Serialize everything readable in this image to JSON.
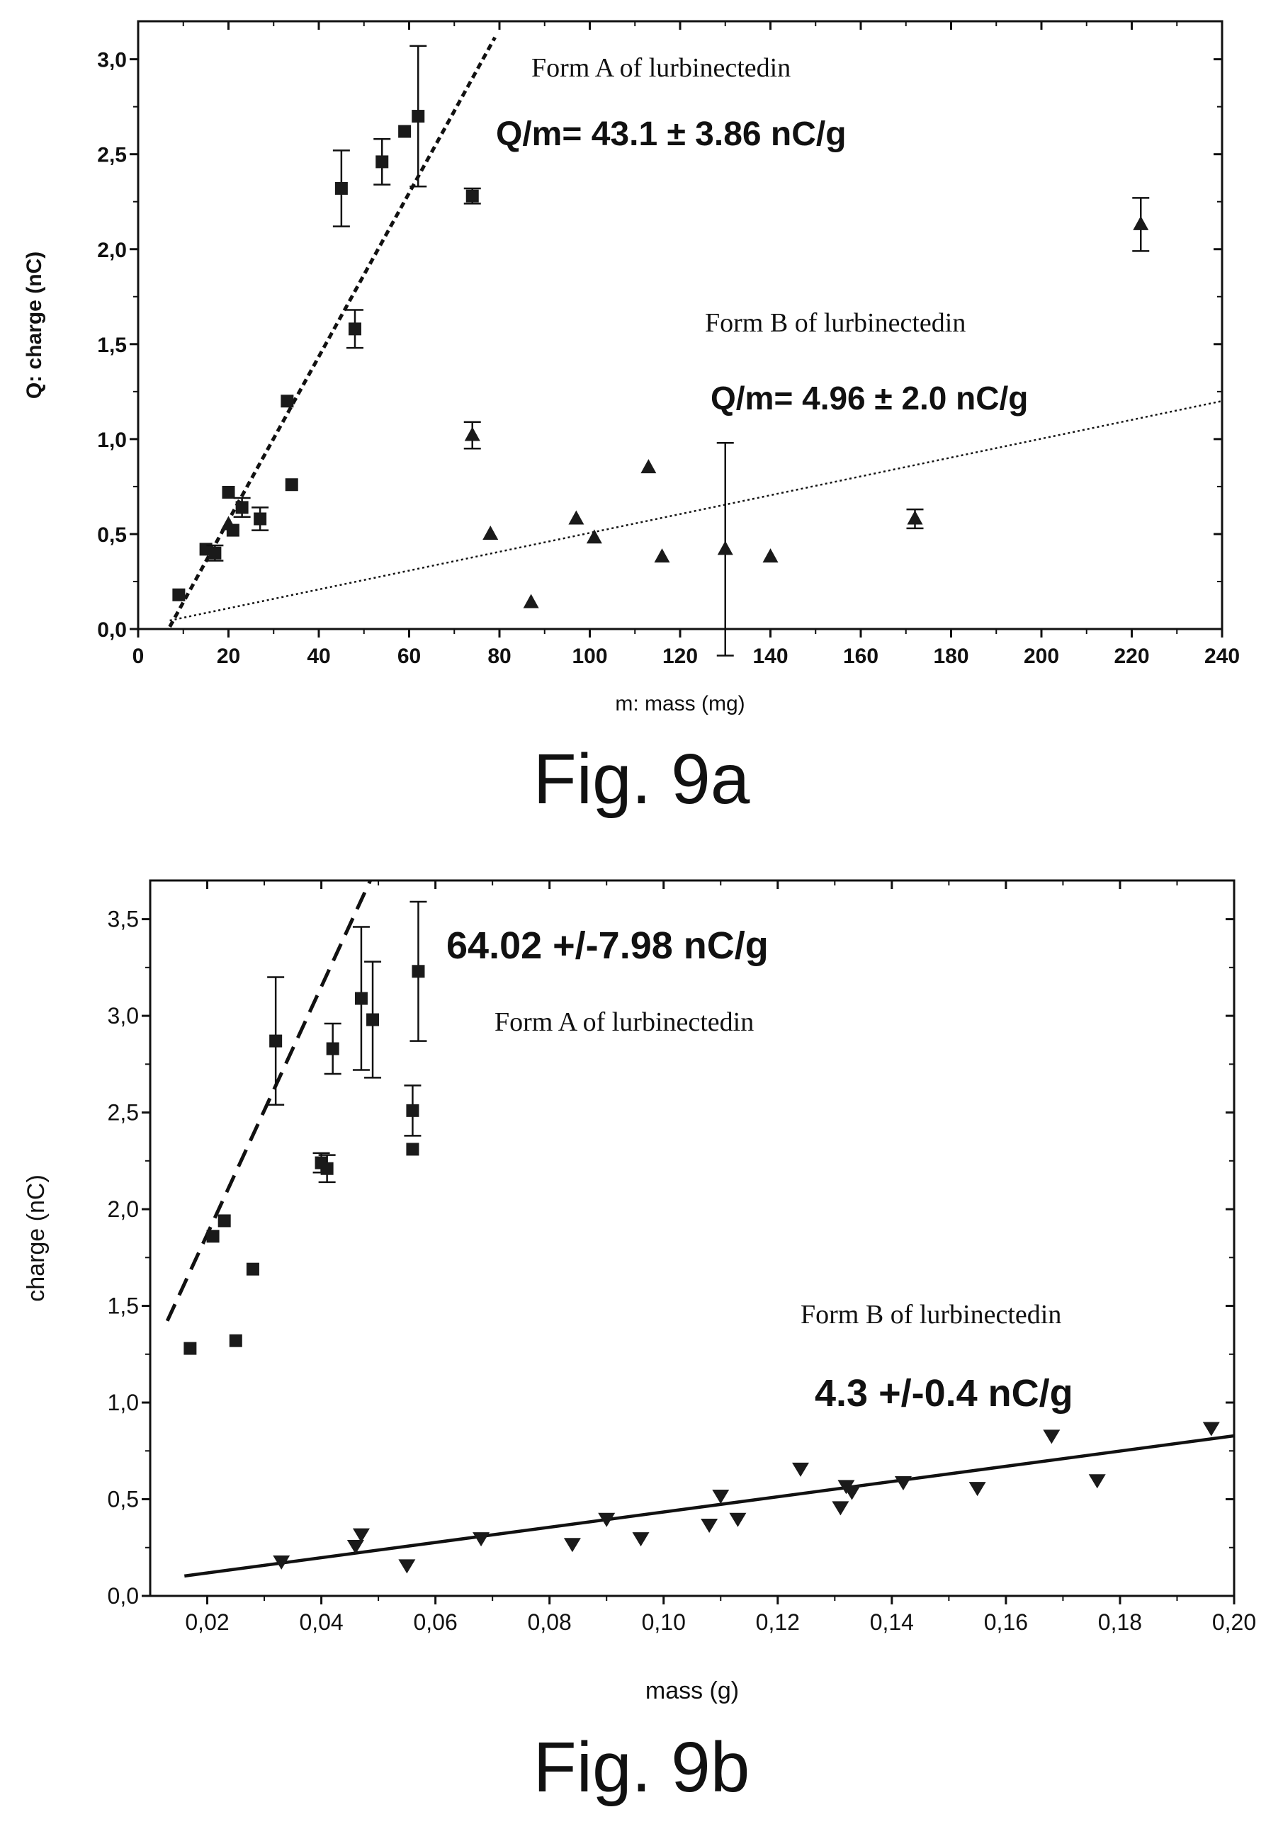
{
  "figures": [
    {
      "caption": "Fig. 9a"
    },
    {
      "caption": "Fig. 9b"
    }
  ],
  "chart_data": [
    {
      "type": "scatter",
      "title": "",
      "xlabel": "m: mass (mg)",
      "ylabel": "Q: charge (nC)",
      "xlim": [
        0,
        240
      ],
      "ylim": [
        0,
        3.2
      ],
      "xticks": [
        "0",
        "20",
        "40",
        "60",
        "80",
        "100",
        "120",
        "140",
        "160",
        "180",
        "200",
        "220",
        "240"
      ],
      "yticks": [
        "0,0",
        "0,5",
        "1,0",
        "1,5",
        "2,0",
        "2,5",
        "3,0"
      ],
      "grid": false,
      "series": [
        {
          "label": "Form A of lurbinectedin",
          "marker": "square",
          "points": [
            {
              "x": 9,
              "y": 0.18
            },
            {
              "x": 15,
              "y": 0.42
            },
            {
              "x": 17,
              "y": 0.4,
              "err": 0.04
            },
            {
              "x": 20,
              "y": 0.72
            },
            {
              "x": 21,
              "y": 0.52
            },
            {
              "x": 23,
              "y": 0.64,
              "err": 0.05
            },
            {
              "x": 27,
              "y": 0.58,
              "err": 0.06
            },
            {
              "x": 33,
              "y": 1.2
            },
            {
              "x": 34,
              "y": 0.76
            },
            {
              "x": 45,
              "y": 2.32,
              "err": 0.2
            },
            {
              "x": 48,
              "y": 1.58,
              "err": 0.1
            },
            {
              "x": 54,
              "y": 2.46,
              "err": 0.12
            },
            {
              "x": 59,
              "y": 2.62
            },
            {
              "x": 62,
              "y": 2.7,
              "err": 0.37
            },
            {
              "x": 74,
              "y": 2.28,
              "err": 0.04
            }
          ],
          "fit": {
            "slope": 0.0431,
            "intercept": -0.29,
            "x_range": [
              7,
              79
            ],
            "label": "Q/m= 43.1 ± 3.86 nC/g"
          }
        },
        {
          "label": "Form B of lurbinectedin",
          "marker": "triangle-up",
          "points": [
            {
              "x": 20,
              "y": 0.55
            },
            {
              "x": 74,
              "y": 1.02,
              "err": 0.07
            },
            {
              "x": 78,
              "y": 0.5
            },
            {
              "x": 87,
              "y": 0.14
            },
            {
              "x": 97,
              "y": 0.58
            },
            {
              "x": 101,
              "y": 0.48
            },
            {
              "x": 113,
              "y": 0.85
            },
            {
              "x": 116,
              "y": 0.38
            },
            {
              "x": 130,
              "y": 0.42,
              "err": 0.56
            },
            {
              "x": 140,
              "y": 0.38
            },
            {
              "x": 172,
              "y": 0.58,
              "err": 0.05
            },
            {
              "x": 222,
              "y": 2.13,
              "err": 0.14
            }
          ],
          "fit": {
            "slope": 0.00496,
            "intercept": 0.01,
            "x_range": [
              7,
              240
            ],
            "label": "Q/m= 4.96 ± 2.0 nC/g"
          }
        }
      ]
    },
    {
      "type": "scatter",
      "title": "",
      "xlabel": "mass (g)",
      "ylabel": "charge (nC)",
      "xlim": [
        0.01,
        0.2
      ],
      "ylim": [
        0,
        3.7
      ],
      "xticks": [
        "0,02",
        "0,04",
        "0,06",
        "0,08",
        "0,10",
        "0,12",
        "0,14",
        "0,16",
        "0,18",
        "0,20"
      ],
      "yticks": [
        "0,0",
        "0,5",
        "1,0",
        "1,5",
        "2,0",
        "2,5",
        "3,0",
        "3,5"
      ],
      "grid": false,
      "series": [
        {
          "label": "Form A of lurbinectedin",
          "marker": "square",
          "points": [
            {
              "x": 0.017,
              "y": 1.28
            },
            {
              "x": 0.021,
              "y": 1.86
            },
            {
              "x": 0.023,
              "y": 1.94
            },
            {
              "x": 0.025,
              "y": 1.32
            },
            {
              "x": 0.028,
              "y": 1.69
            },
            {
              "x": 0.032,
              "y": 2.87,
              "err": 0.33
            },
            {
              "x": 0.04,
              "y": 2.24,
              "err": 0.05
            },
            {
              "x": 0.041,
              "y": 2.21,
              "err": 0.07
            },
            {
              "x": 0.042,
              "y": 2.83,
              "err": 0.13
            },
            {
              "x": 0.047,
              "y": 3.09,
              "err": 0.37
            },
            {
              "x": 0.049,
              "y": 2.98,
              "err": 0.3
            },
            {
              "x": 0.056,
              "y": 2.51,
              "err": 0.13
            },
            {
              "x": 0.056,
              "y": 2.31
            },
            {
              "x": 0.057,
              "y": 3.23,
              "err": 0.36
            }
          ],
          "fit": {
            "slope": 64.02,
            "intercept": 0.59,
            "x_range": [
              0.013,
              0.058
            ],
            "label": "64.02 +/-7.98 nC/g"
          }
        },
        {
          "label": "Form B of lurbinectedin",
          "marker": "triangle-down",
          "points": [
            {
              "x": 0.033,
              "y": 0.18
            },
            {
              "x": 0.046,
              "y": 0.26
            },
            {
              "x": 0.047,
              "y": 0.32
            },
            {
              "x": 0.055,
              "y": 0.16
            },
            {
              "x": 0.068,
              "y": 0.3
            },
            {
              "x": 0.084,
              "y": 0.27
            },
            {
              "x": 0.09,
              "y": 0.4
            },
            {
              "x": 0.096,
              "y": 0.3
            },
            {
              "x": 0.108,
              "y": 0.37
            },
            {
              "x": 0.11,
              "y": 0.52
            },
            {
              "x": 0.113,
              "y": 0.4
            },
            {
              "x": 0.124,
              "y": 0.66
            },
            {
              "x": 0.131,
              "y": 0.46
            },
            {
              "x": 0.132,
              "y": 0.57
            },
            {
              "x": 0.133,
              "y": 0.54
            },
            {
              "x": 0.142,
              "y": 0.59
            },
            {
              "x": 0.155,
              "y": 0.56
            },
            {
              "x": 0.168,
              "y": 0.83
            },
            {
              "x": 0.176,
              "y": 0.6
            },
            {
              "x": 0.196,
              "y": 0.87
            }
          ],
          "fit": {
            "slope": 3.94,
            "intercept": 0.04,
            "x_range": [
              0.016,
              0.2
            ],
            "label": "4.3 +/-0.4 nC/g"
          }
        }
      ]
    }
  ]
}
